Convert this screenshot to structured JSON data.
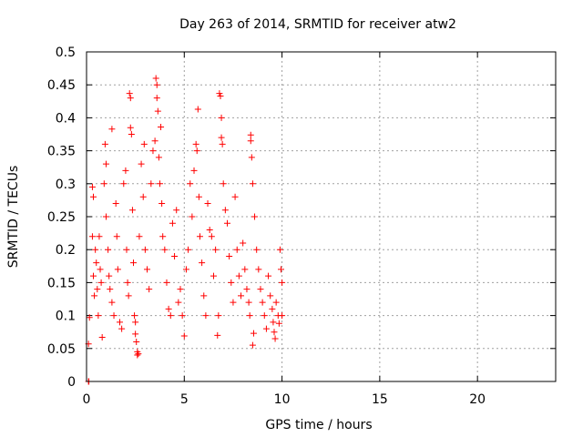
{
  "chart_data": {
    "type": "scatter",
    "title": "Day 263 of 2014, SRMTID for receiver atw2",
    "xlabel": "GPS time / hours",
    "ylabel": "SRMTID / TECUs",
    "xlim": [
      0,
      24
    ],
    "ylim": [
      0,
      0.5
    ],
    "x_ticks": [
      0,
      5,
      10,
      15,
      20
    ],
    "y_ticks": [
      0,
      0.05,
      0.1,
      0.15,
      0.2,
      0.25,
      0.3,
      0.35,
      0.4,
      0.45,
      0.5
    ],
    "x_tick_labels": [
      "0",
      "5",
      "10",
      "15",
      "20"
    ],
    "y_tick_labels": [
      "0",
      "0.05",
      "0.1",
      "0.15",
      "0.2",
      "0.25",
      "0.3",
      "0.35",
      "0.4",
      "0.45",
      "0.5"
    ],
    "grid": true,
    "marker": "+",
    "series": [
      {
        "name": "SRMTID",
        "color": "#ff0000",
        "points": [
          [
            0.1,
            0.0
          ],
          [
            0.12,
            0.0
          ],
          [
            0.1,
            0.057
          ],
          [
            0.15,
            0.097
          ],
          [
            0.3,
            0.295
          ],
          [
            0.35,
            0.28
          ],
          [
            0.3,
            0.22
          ],
          [
            0.35,
            0.16
          ],
          [
            0.4,
            0.13
          ],
          [
            0.45,
            0.2
          ],
          [
            0.5,
            0.18
          ],
          [
            0.55,
            0.14
          ],
          [
            0.6,
            0.1
          ],
          [
            0.65,
            0.22
          ],
          [
            0.7,
            0.17
          ],
          [
            0.75,
            0.15
          ],
          [
            0.8,
            0.067
          ],
          [
            0.9,
            0.3
          ],
          [
            0.95,
            0.36
          ],
          [
            1.0,
            0.33
          ],
          [
            1.0,
            0.25
          ],
          [
            1.1,
            0.2
          ],
          [
            1.15,
            0.16
          ],
          [
            1.2,
            0.14
          ],
          [
            1.3,
            0.383
          ],
          [
            1.3,
            0.12
          ],
          [
            1.4,
            0.1
          ],
          [
            1.5,
            0.27
          ],
          [
            1.55,
            0.22
          ],
          [
            1.6,
            0.17
          ],
          [
            1.7,
            0.09
          ],
          [
            1.8,
            0.08
          ],
          [
            1.9,
            0.3
          ],
          [
            2.0,
            0.32
          ],
          [
            2.05,
            0.2
          ],
          [
            2.1,
            0.15
          ],
          [
            2.15,
            0.13
          ],
          [
            2.2,
            0.437
          ],
          [
            2.25,
            0.43
          ],
          [
            2.25,
            0.385
          ],
          [
            2.3,
            0.375
          ],
          [
            2.35,
            0.26
          ],
          [
            2.4,
            0.18
          ],
          [
            2.45,
            0.1
          ],
          [
            2.5,
            0.09
          ],
          [
            2.5,
            0.072
          ],
          [
            2.55,
            0.06
          ],
          [
            2.6,
            0.045
          ],
          [
            2.6,
            0.04
          ],
          [
            2.65,
            0.042
          ],
          [
            2.7,
            0.22
          ],
          [
            2.8,
            0.33
          ],
          [
            2.9,
            0.28
          ],
          [
            2.95,
            0.36
          ],
          [
            3.0,
            0.2
          ],
          [
            3.1,
            0.17
          ],
          [
            3.2,
            0.14
          ],
          [
            3.3,
            0.3
          ],
          [
            3.4,
            0.35
          ],
          [
            3.5,
            0.365
          ],
          [
            3.55,
            0.46
          ],
          [
            3.6,
            0.45
          ],
          [
            3.6,
            0.43
          ],
          [
            3.65,
            0.41
          ],
          [
            3.7,
            0.34
          ],
          [
            3.75,
            0.3
          ],
          [
            3.8,
            0.386
          ],
          [
            3.85,
            0.27
          ],
          [
            3.9,
            0.22
          ],
          [
            4.0,
            0.2
          ],
          [
            4.1,
            0.15
          ],
          [
            4.2,
            0.11
          ],
          [
            4.3,
            0.1
          ],
          [
            4.4,
            0.24
          ],
          [
            4.5,
            0.19
          ],
          [
            4.6,
            0.26
          ],
          [
            4.7,
            0.12
          ],
          [
            4.8,
            0.14
          ],
          [
            4.9,
            0.1
          ],
          [
            5.0,
            0.069
          ],
          [
            5.1,
            0.17
          ],
          [
            5.2,
            0.2
          ],
          [
            5.3,
            0.3
          ],
          [
            5.4,
            0.25
          ],
          [
            5.5,
            0.32
          ],
          [
            5.6,
            0.36
          ],
          [
            5.65,
            0.35
          ],
          [
            5.7,
            0.413
          ],
          [
            5.75,
            0.28
          ],
          [
            5.8,
            0.22
          ],
          [
            5.9,
            0.18
          ],
          [
            6.0,
            0.13
          ],
          [
            6.1,
            0.1
          ],
          [
            6.2,
            0.27
          ],
          [
            6.3,
            0.23
          ],
          [
            6.4,
            0.22
          ],
          [
            6.5,
            0.16
          ],
          [
            6.6,
            0.2
          ],
          [
            6.7,
            0.07
          ],
          [
            6.75,
            0.1
          ],
          [
            6.8,
            0.437
          ],
          [
            6.85,
            0.433
          ],
          [
            6.9,
            0.4
          ],
          [
            6.9,
            0.37
          ],
          [
            6.95,
            0.36
          ],
          [
            7.0,
            0.3
          ],
          [
            7.1,
            0.26
          ],
          [
            7.2,
            0.24
          ],
          [
            7.3,
            0.19
          ],
          [
            7.4,
            0.15
          ],
          [
            7.5,
            0.12
          ],
          [
            7.6,
            0.28
          ],
          [
            7.7,
            0.2
          ],
          [
            7.8,
            0.16
          ],
          [
            7.9,
            0.13
          ],
          [
            8.0,
            0.21
          ],
          [
            8.1,
            0.17
          ],
          [
            8.2,
            0.14
          ],
          [
            8.3,
            0.12
          ],
          [
            8.35,
            0.1
          ],
          [
            8.4,
            0.374
          ],
          [
            8.4,
            0.365
          ],
          [
            8.45,
            0.34
          ],
          [
            8.5,
            0.3
          ],
          [
            8.5,
            0.055
          ],
          [
            8.55,
            0.073
          ],
          [
            8.6,
            0.25
          ],
          [
            8.7,
            0.2
          ],
          [
            8.8,
            0.17
          ],
          [
            8.9,
            0.14
          ],
          [
            9.0,
            0.12
          ],
          [
            9.1,
            0.1
          ],
          [
            9.2,
            0.08
          ],
          [
            9.3,
            0.16
          ],
          [
            9.4,
            0.13
          ],
          [
            9.5,
            0.11
          ],
          [
            9.55,
            0.09
          ],
          [
            9.6,
            0.075
          ],
          [
            9.65,
            0.065
          ],
          [
            9.7,
            0.12
          ],
          [
            9.8,
            0.1
          ],
          [
            9.85,
            0.088
          ],
          [
            9.9,
            0.2
          ],
          [
            9.95,
            0.17
          ],
          [
            10.0,
            0.15
          ],
          [
            10.0,
            0.1
          ]
        ]
      }
    ]
  }
}
